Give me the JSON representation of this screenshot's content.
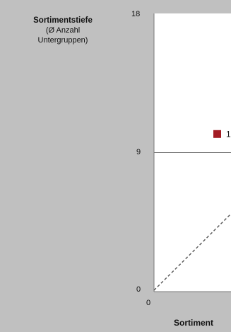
{
  "chart_data": {
    "type": "scatter",
    "ylabel_lines": [
      "Sortimentstiefe",
      "(Ø Anzahl",
      "Untergruppen)"
    ],
    "xlabel": "Sortiment",
    "y_ticks": [
      "0",
      "9",
      "18"
    ],
    "x_ticks": [
      "0"
    ],
    "ylim": [
      0,
      18
    ],
    "reference_line_y": 9,
    "diagonal_reference": "dashed",
    "points": [
      {
        "label": "1",
        "y": 10.2,
        "color": "#a31c24"
      }
    ],
    "grid": false
  }
}
